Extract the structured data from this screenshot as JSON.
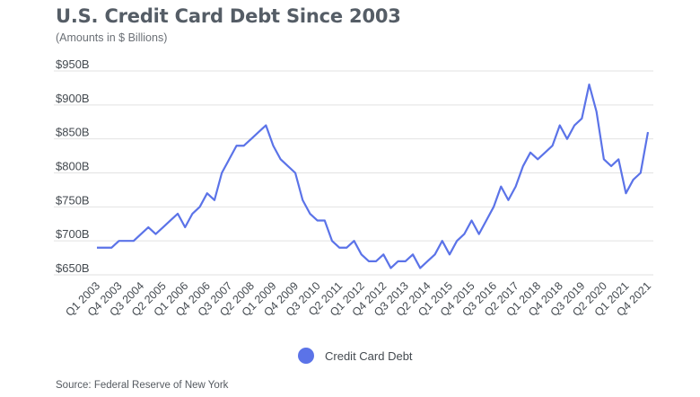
{
  "header": {
    "title": "U.S. Credit Card Debt Since 2003",
    "subtitle": "(Amounts in $ Billions)"
  },
  "legend": {
    "label": "Credit Card Debt"
  },
  "source": "Source: Federal Reserve of New York",
  "colors": {
    "line": "#5b73e8",
    "grid": "#e2e2e2",
    "axis_text": "#444a50"
  },
  "chart_data": {
    "type": "line",
    "title": "U.S. Credit Card Debt Since 2003",
    "subtitle": "(Amounts in $ Billions)",
    "xlabel": "",
    "ylabel": "",
    "ylim": [
      650,
      950
    ],
    "yticks": [
      650,
      700,
      750,
      800,
      850,
      900,
      950
    ],
    "ytick_labels": [
      "$650B",
      "$700B",
      "$750B",
      "$800B",
      "$850B",
      "$900B",
      "$950B"
    ],
    "grid": true,
    "legend_position": "bottom-center",
    "xtick_labels": [
      "Q1 2003",
      "Q4 2003",
      "Q3 2004",
      "Q2 2005",
      "Q1 2006",
      "Q4 2006",
      "Q3 2007",
      "Q2 2008",
      "Q1 2009",
      "Q4 2009",
      "Q3 2010",
      "Q2 2011",
      "Q1 2012",
      "Q4 2012",
      "Q3 2013",
      "Q2 2014",
      "Q1 2015",
      "Q4 2015",
      "Q3 2016",
      "Q2 2017",
      "Q1 2018",
      "Q4 2018",
      "Q3 2019",
      "Q2 2020",
      "Q1 2021",
      "Q4 2021"
    ],
    "series": [
      {
        "name": "Credit Card Debt",
        "values": [
          690,
          690,
          690,
          700,
          700,
          700,
          710,
          720,
          710,
          720,
          730,
          740,
          720,
          740,
          750,
          770,
          760,
          800,
          820,
          840,
          840,
          850,
          860,
          870,
          840,
          820,
          810,
          800,
          760,
          740,
          730,
          730,
          700,
          690,
          690,
          700,
          680,
          670,
          670,
          680,
          660,
          670,
          670,
          680,
          660,
          670,
          680,
          700,
          680,
          700,
          710,
          730,
          710,
          730,
          750,
          780,
          760,
          780,
          810,
          830,
          820,
          830,
          840,
          870,
          850,
          870,
          880,
          930,
          890,
          820,
          810,
          820,
          770,
          790,
          800,
          860
        ]
      }
    ]
  }
}
